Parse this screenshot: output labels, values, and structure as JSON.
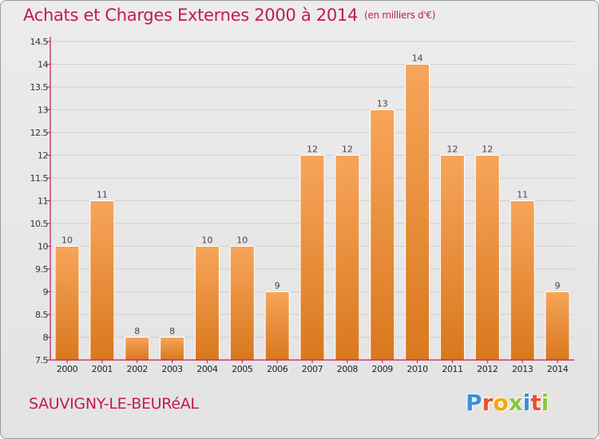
{
  "header": {
    "title": "Achats et Charges Externes 2000 à 2014",
    "subtitle": "(en milliers d'€)"
  },
  "footer": {
    "commune": "SAUVIGNY-LE-BEURéAL",
    "logo_text": "Proxiti",
    "logo_letters": [
      {
        "char": "P",
        "color": "#3a8fd8"
      },
      {
        "char": "r",
        "color": "#e8532d"
      },
      {
        "char": "o",
        "color": "#f2a900"
      },
      {
        "char": "x",
        "color": "#8dc63f"
      },
      {
        "char": "i",
        "color": "#3a8fd8"
      },
      {
        "char": "t",
        "color": "#e8532d"
      },
      {
        "char": "i",
        "color": "#8dc63f"
      }
    ]
  },
  "colors": {
    "accent": "#c4185c",
    "bar_light": "#f7a55a",
    "bar_dark": "#d9781e",
    "axis": "#c4185c",
    "grid": "#cfcfcf"
  },
  "chart_data": {
    "type": "bar",
    "title": "Achats et Charges Externes 2000 à 2014",
    "subtitle": "(en milliers d'€)",
    "categories": [
      "2000",
      "2001",
      "2002",
      "2003",
      "2004",
      "2005",
      "2006",
      "2007",
      "2008",
      "2009",
      "2010",
      "2011",
      "2012",
      "2013",
      "2014"
    ],
    "values": [
      10,
      11,
      8,
      8,
      10,
      10,
      9,
      12,
      12,
      13,
      14,
      12,
      12,
      11,
      9
    ],
    "ylim": [
      7.5,
      14.5
    ],
    "yticks": [
      "7.5",
      "8",
      "8.5",
      "9",
      "9.5",
      "10",
      "10.5",
      "11",
      "11.5",
      "12",
      "12.5",
      "13",
      "13.5",
      "14",
      "14.5"
    ],
    "grid": true,
    "xlabel": "",
    "ylabel": ""
  }
}
